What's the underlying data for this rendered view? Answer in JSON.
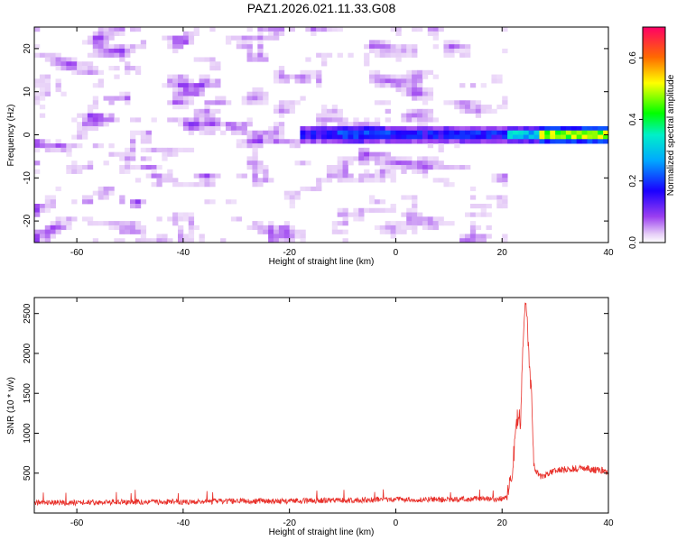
{
  "title": "PAZ1.2026.021.11.33.G08",
  "chart_data": [
    {
      "type": "heatmap",
      "xlabel": "Height of straight line (km)",
      "ylabel": "Frequency (Hz)",
      "xlim": [
        -68,
        40
      ],
      "ylim": [
        -25,
        25
      ],
      "xticks": [
        -60,
        -40,
        -20,
        0,
        20,
        40
      ],
      "yticks": [
        -20,
        -10,
        0,
        10,
        20
      ],
      "features": {
        "noise_region_x": [
          -68,
          21
        ],
        "signal_line_frequency": 0,
        "signal_onset_x": 22,
        "peak_amplitude_x": [
          27,
          40
        ]
      },
      "colorbar": {
        "label": "Normalized spectral amplitude",
        "range": [
          0.0,
          0.7
        ],
        "ticks": [
          "0.0",
          "0.2",
          "0.4",
          "0.6"
        ]
      }
    },
    {
      "type": "line",
      "xlabel": "Height of straight line (km)",
      "ylabel": "SNR (10 * v/v)",
      "xlim": [
        -68,
        40
      ],
      "ylim": [
        0,
        2700
      ],
      "xticks": [
        -60,
        -40,
        -20,
        0,
        20,
        40
      ],
      "yticks": [
        500,
        1000,
        1500,
        2000,
        2500
      ],
      "color": "#e8302a",
      "series": [
        {
          "name": "SNR",
          "x": [
            -68,
            -60,
            -50,
            -40,
            -30,
            -20,
            -10,
            0,
            10,
            20,
            21,
            22,
            23,
            23.5,
            24,
            24.5,
            25,
            25.5,
            26,
            27,
            30,
            35,
            40
          ],
          "y": [
            130,
            130,
            140,
            140,
            150,
            150,
            160,
            170,
            170,
            180,
            200,
            600,
            1250,
            1100,
            2300,
            2700,
            2000,
            1500,
            600,
            450,
            530,
            560,
            520
          ]
        }
      ]
    }
  ]
}
